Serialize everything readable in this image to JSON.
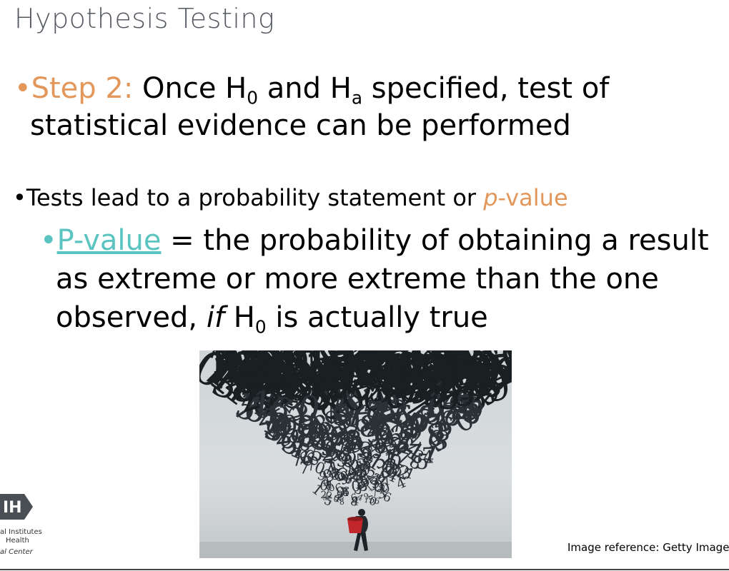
{
  "title": "Hypothesis Testing",
  "step": {
    "bullet": "•",
    "lead": "Step 2:",
    "text_a": " Once H",
    "sub_a": "0",
    "text_b": " and H",
    "sub_b": "a",
    "text_c": " specified, test of",
    "line2": "statistical evidence can be performed"
  },
  "tests": {
    "bullet": "•",
    "text": "Tests lead to a probability statement or ",
    "p_italic": "p",
    "p_rest": "-value"
  },
  "pvalue": {
    "bullet": "•",
    "term": "P-value",
    "def_a": " = the probability of obtaining a result",
    "line2": "as extreme or more extreme than the one",
    "line3_a": "observed, ",
    "line3_if": "if",
    "line3_b": " H",
    "line3_sub": "0",
    "line3_c": " is actually true"
  },
  "image_reference": "Image reference: Getty Images",
  "logo": {
    "mark": "IH",
    "line1": "al Institutes",
    "line2": "Health",
    "line3": "al Center"
  },
  "colors": {
    "orange": "#e3975a",
    "teal": "#5bc4c0",
    "title_gray": "#555a62"
  },
  "photo_icon": "falling-numbers-illustration"
}
